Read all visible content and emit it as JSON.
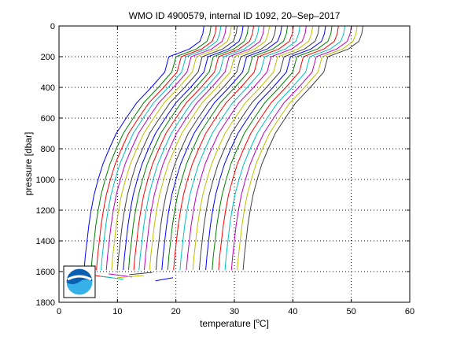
{
  "chart_data": {
    "type": "line",
    "title": "WMO ID 4900579, internal ID 1092, 20–Sep–2017",
    "xlabel_main": "temperature [",
    "xlabel_sup": "o",
    "xlabel_end": "C]",
    "ylabel": "pressure [dbar]",
    "xlim": [
      0,
      60
    ],
    "ylim": [
      1800,
      0
    ],
    "y_reversed": true,
    "grid": true,
    "grid_style": "dotted",
    "x_ticks": [
      0,
      10,
      20,
      30,
      40,
      50,
      60
    ],
    "y_ticks": [
      0,
      200,
      400,
      600,
      800,
      1000,
      1200,
      1400,
      1600,
      1800
    ],
    "x_tick_labels": [
      "0",
      "10",
      "20",
      "30",
      "40",
      "50",
      "60"
    ],
    "y_tick_labels": [
      "0",
      "200",
      "400",
      "600",
      "800",
      "1000",
      "1200",
      "1400",
      "1600",
      "1800"
    ],
    "note": "waterfall plot: successive profiles offset along the temperature axis",
    "colors": [
      "#0000ff",
      "#008000",
      "#ff0000",
      "#00bfbf",
      "#bf00bf",
      "#bfbf00",
      "#404040"
    ],
    "shape": {
      "p": [
        0,
        50,
        100,
        150,
        200,
        300,
        400,
        500,
        600,
        700,
        800,
        900,
        1000,
        1100,
        1200,
        1300,
        1400,
        1500,
        1590
      ],
      "dt": [
        20.5,
        20.3,
        19.8,
        18.0,
        14.5,
        13.8,
        11.5,
        9.0,
        7.2,
        5.5,
        4.3,
        3.2,
        2.4,
        1.7,
        1.2,
        0.8,
        0.5,
        0.2,
        0.0
      ]
    },
    "series": [
      {
        "offset": 4.3
      },
      {
        "offset": 5.5
      },
      {
        "offset": 6.4
      },
      {
        "offset": 7.2
      },
      {
        "offset": 8.1
      },
      {
        "offset": 9.0
      },
      {
        "offset": 10.0
      },
      {
        "offset": 11.0
      },
      {
        "offset": 11.9
      },
      {
        "offset": 12.8
      },
      {
        "offset": 13.7
      },
      {
        "offset": 14.6
      },
      {
        "offset": 15.5
      },
      {
        "offset": 16.6
      },
      {
        "offset": 17.6
      },
      {
        "offset": 18.6
      },
      {
        "offset": 19.6
      },
      {
        "offset": 20.7
      },
      {
        "offset": 21.8
      },
      {
        "offset": 22.9
      },
      {
        "offset": 24.0
      },
      {
        "offset": 25.1
      },
      {
        "offset": 26.2
      },
      {
        "offset": 27.3
      },
      {
        "offset": 28.4
      },
      {
        "offset": 29.5
      },
      {
        "offset": 30.5
      },
      {
        "offset": 31.5
      }
    ],
    "bottom_segments": [
      {
        "x": [
          5.0,
          9.0
        ],
        "p": [
          1620,
          1640
        ]
      },
      {
        "x": [
          7.0,
          11.0
        ],
        "p": [
          1630,
          1650
        ]
      },
      {
        "x": [
          8.5,
          12.5
        ],
        "p": [
          1615,
          1635
        ]
      },
      {
        "x": [
          10.0,
          14.5
        ],
        "p": [
          1640,
          1625
        ]
      },
      {
        "x": [
          12.0,
          16.0
        ],
        "p": [
          1620,
          1605
        ]
      },
      {
        "x": [
          16.5,
          19.5
        ],
        "p": [
          1660,
          1640
        ]
      }
    ]
  },
  "logo": {
    "text": "NOAA"
  }
}
